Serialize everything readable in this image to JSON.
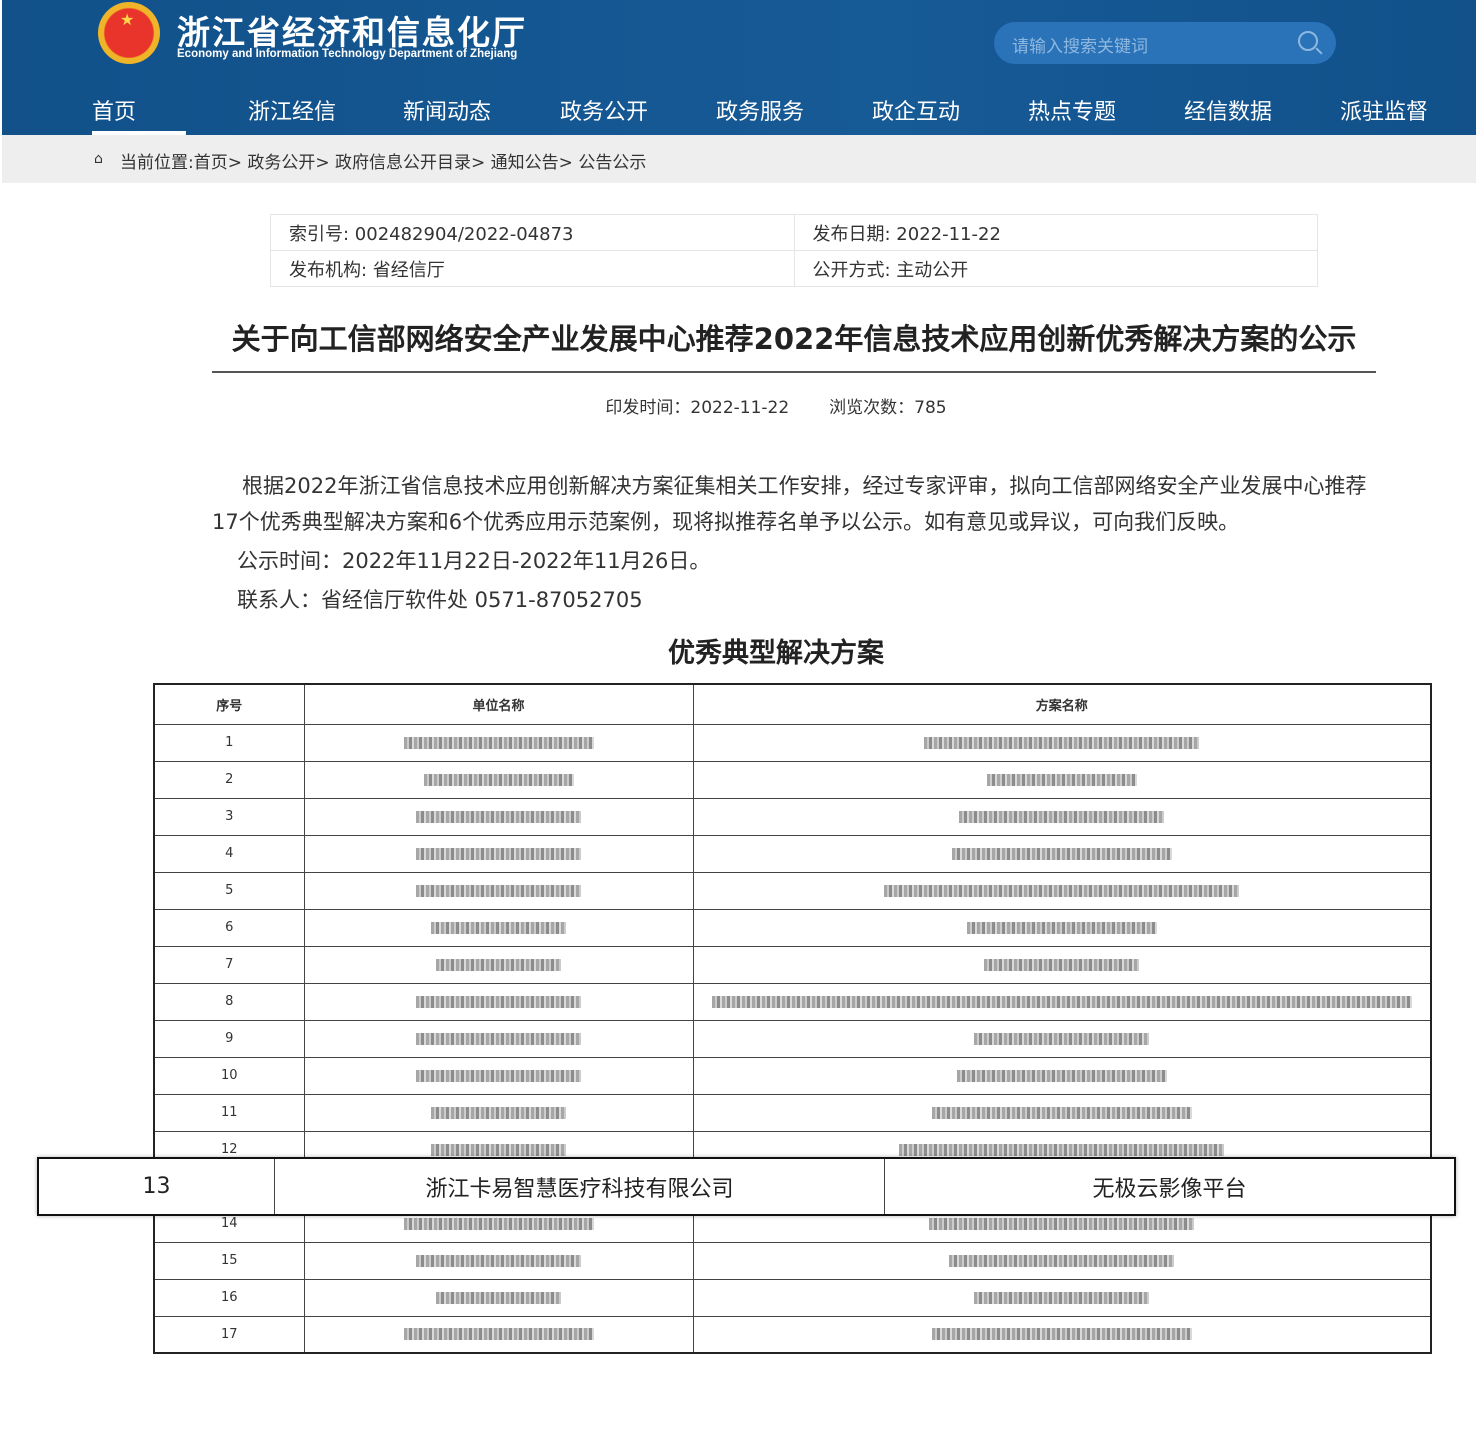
{
  "header": {
    "title": "浙江省经济和信息化厅",
    "subtitle": "Economy and Information Technology Department of Zhejiang",
    "search_placeholder": "请输入搜索关键词"
  },
  "nav": [
    "首页",
    "浙江经信",
    "新闻动态",
    "政务公开",
    "政务服务",
    "政企互动",
    "热点专题",
    "经信数据",
    "派驻监督"
  ],
  "breadcrumb": "当前位置:首页> 政务公开> 政府信息公开目录> 通知公告> 公告公示",
  "meta": {
    "index": "索引号: 002482904/2022-04873",
    "date": "发布日期: 2022-11-22",
    "org": "发布机构: 省经信厅",
    "mode": "公开方式: 主动公开"
  },
  "article": {
    "title": "关于向工信部网络安全产业发展中心推荐2022年信息技术应用创新优秀解决方案的公示",
    "print_time": "印发时间：2022-11-22",
    "views": "浏览次数：785",
    "paragraph": "根据2022年浙江省信息技术应用创新解决方案征集相关工作安排，经过专家评审，拟向工信部网络安全产业发展中心推荐17个优秀典型解决方案和6个优秀应用示范案例，现将拟推荐名单予以公示。如有意见或异议，可向我们反映。",
    "period": "公示时间：2022年11月22日-2022年11月26日。",
    "contact": "联系人：省经信厅软件处 0571-87052705",
    "section_title": "优秀典型解决方案"
  },
  "table": {
    "headers": [
      "序号",
      "单位名称",
      "方案名称"
    ],
    "rows": [
      "1",
      "2",
      "3",
      "4",
      "5",
      "6",
      "7",
      "8",
      "9",
      "10",
      "11",
      "12",
      "13",
      "14",
      "15",
      "16",
      "17"
    ]
  },
  "highlight": {
    "no": "13",
    "company": "浙江卡易智慧医疗科技有限公司",
    "solution": "无极云影像平台"
  }
}
